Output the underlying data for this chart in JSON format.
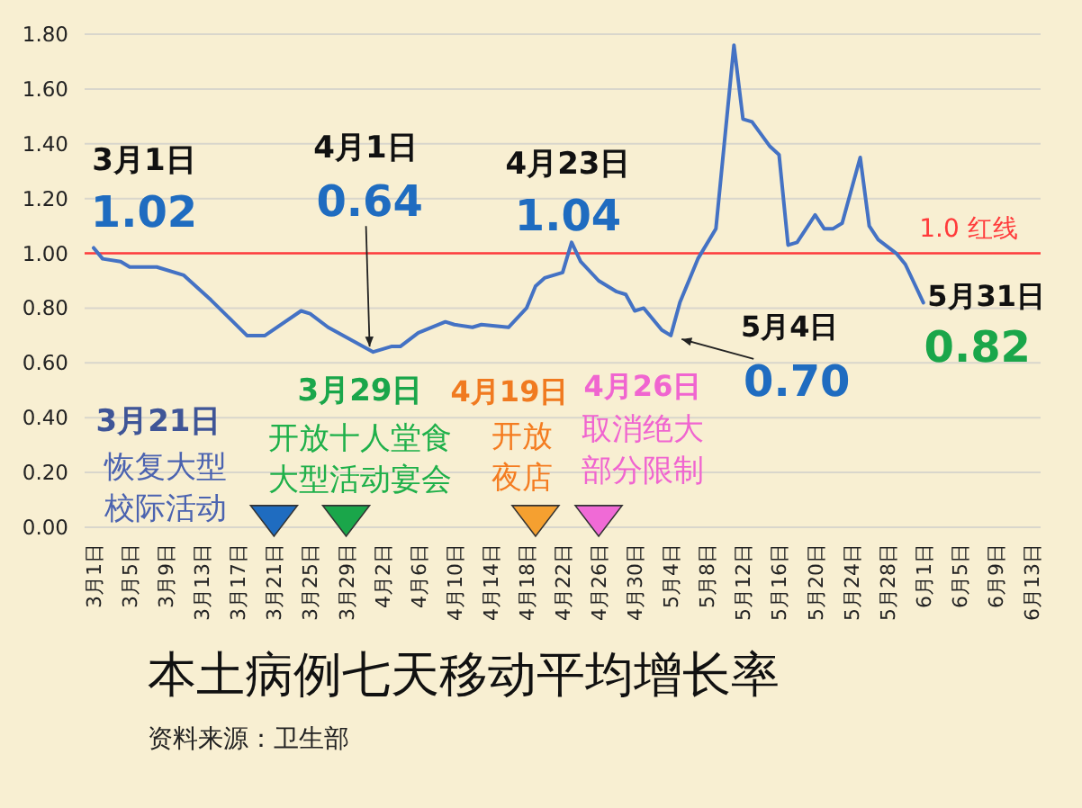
{
  "chart_data": {
    "type": "line",
    "title": "本土病例七天移动平均增长率",
    "x": [
      "--03-01",
      "--03-02",
      "--03-04",
      "--03-05",
      "--03-08",
      "--03-11",
      "--03-14",
      "--03-18",
      "--03-20",
      "--03-24",
      "--03-25",
      "--03-27",
      "--04-01",
      "--04-03",
      "--04-04",
      "--04-06",
      "--04-09",
      "--04-10",
      "--04-12",
      "--04-13",
      "--04-16",
      "--04-18",
      "--04-19",
      "--04-20",
      "--04-22",
      "--04-23",
      "--04-24",
      "--04-26",
      "--04-28",
      "--04-29",
      "--04-30",
      "--05-01",
      "--05-03",
      "--05-04",
      "--05-05",
      "--05-07",
      "--05-09",
      "--05-11",
      "--05-12",
      "--05-13",
      "--05-15",
      "--05-16",
      "--05-17",
      "--05-18",
      "--05-20",
      "--05-21",
      "--05-22",
      "--05-23",
      "--05-25",
      "--05-26",
      "--05-27",
      "--05-29",
      "--05-30",
      "--06-01"
    ],
    "series": [
      {
        "type": "line",
        "color": "#4472c4",
        "values": [
          1.02,
          0.98,
          0.97,
          0.95,
          0.95,
          0.92,
          0.83,
          0.7,
          0.7,
          0.79,
          0.78,
          0.73,
          0.64,
          0.66,
          0.66,
          0.71,
          0.75,
          0.74,
          0.73,
          0.74,
          0.73,
          0.8,
          0.88,
          0.91,
          0.93,
          1.04,
          0.97,
          0.9,
          0.86,
          0.85,
          0.79,
          0.8,
          0.72,
          0.7,
          0.82,
          0.98,
          1.09,
          1.76,
          1.49,
          1.48,
          1.39,
          1.36,
          1.03,
          1.04,
          1.14,
          1.09,
          1.09,
          1.11,
          1.35,
          1.1,
          1.05,
          1.0,
          0.96,
          0.82
        ]
      },
      {
        "type": "scatter",
        "marker": "triangle",
        "x": [
          "--03-21",
          "--03-29",
          "--04-19",
          "--04-26"
        ],
        "values": [
          0.02,
          0.02,
          0.02,
          0.02
        ],
        "colors": [
          "#1f6cc0",
          "#1aa64a",
          "#f5a030",
          "#f06ad6"
        ]
      }
    ],
    "xlim": [
      "--02-28",
      "--06-14"
    ],
    "xticks": [
      {
        "value": "--03-01",
        "label": "3月1日"
      },
      {
        "value": "--03-05",
        "label": "3月5日"
      },
      {
        "value": "--03-09",
        "label": "3月9日"
      },
      {
        "value": "--03-13",
        "label": "3月13日"
      },
      {
        "value": "--03-17",
        "label": "3月17日"
      },
      {
        "value": "--03-21",
        "label": "3月21日"
      },
      {
        "value": "--03-25",
        "label": "3月25日"
      },
      {
        "value": "--03-29",
        "label": "3月29日"
      },
      {
        "value": "--04-02",
        "label": "4月2日"
      },
      {
        "value": "--04-06",
        "label": "4月6日"
      },
      {
        "value": "--04-10",
        "label": "4月10日"
      },
      {
        "value": "--04-14",
        "label": "4月14日"
      },
      {
        "value": "--04-18",
        "label": "4月18日"
      },
      {
        "value": "--04-22",
        "label": "4月22日"
      },
      {
        "value": "--04-26",
        "label": "4月26日"
      },
      {
        "value": "--04-30",
        "label": "4月30日"
      },
      {
        "value": "--05-04",
        "label": "5月4日"
      },
      {
        "value": "--05-08",
        "label": "5月8日"
      },
      {
        "value": "--05-12",
        "label": "5月12日"
      },
      {
        "value": "--05-16",
        "label": "5月16日"
      },
      {
        "value": "--05-20",
        "label": "5月20日"
      },
      {
        "value": "--05-24",
        "label": "5月24日"
      },
      {
        "value": "--05-28",
        "label": "5月28日"
      },
      {
        "value": "--06-01",
        "label": "6月1日"
      },
      {
        "value": "--06-05",
        "label": "6月5日"
      },
      {
        "value": "--06-09",
        "label": "6月9日"
      },
      {
        "value": "--06-13",
        "label": "6月13日"
      }
    ],
    "ylim": [
      0,
      1.8
    ],
    "yticks": [
      {
        "value": 0,
        "label": "0.00"
      },
      {
        "value": 0.2,
        "label": "0.20"
      },
      {
        "value": 0.4,
        "label": "0.40"
      },
      {
        "value": 0.6,
        "label": "0.60"
      },
      {
        "value": 0.8,
        "label": "0.80"
      },
      {
        "value": 1,
        "label": "1.00"
      },
      {
        "value": 1.2,
        "label": "1.20"
      },
      {
        "value": 1.4,
        "label": "1.40"
      },
      {
        "value": 1.6,
        "label": "1.60"
      },
      {
        "value": 1.8,
        "label": "1.80"
      }
    ],
    "grid": "y",
    "ref_lines": [
      {
        "axis": "y",
        "value": 1.0,
        "label": "1.0 红线",
        "color": "#ff3b3b"
      }
    ],
    "annotations": [
      {
        "text": "3月1日",
        "x": "--03-01",
        "y": 1.02
      },
      {
        "text": "1.02",
        "x": "--03-01",
        "y": 1.02
      },
      "4月1日",
      {
        "text": "0.64",
        "x": "--04-01",
        "y": 0.64
      },
      {
        "text": "4月23日",
        "x": "--04-23",
        "y": 1.04
      },
      {
        "text": "1.04",
        "x": "--04-23",
        "y": 1.04
      },
      {
        "text": "5月4日",
        "x": "--05-04",
        "y": 0.7
      },
      {
        "text": "0.70",
        "x": "--05-04",
        "y": 0.7
      },
      {
        "text": "5月31日",
        "x": "--05-31",
        "y": 0.82
      },
      {
        "text": "0.82",
        "x": "--05-31",
        "y": 0.82
      },
      "3月21日",
      "恢复大型校际活动",
      "3月29日",
      "开放十人堂食大型活动宴会",
      "4月19日",
      "开放夜店",
      "4月26日",
      "取消绝大部分限制",
      "资料来源：卫生部"
    ]
  }
}
